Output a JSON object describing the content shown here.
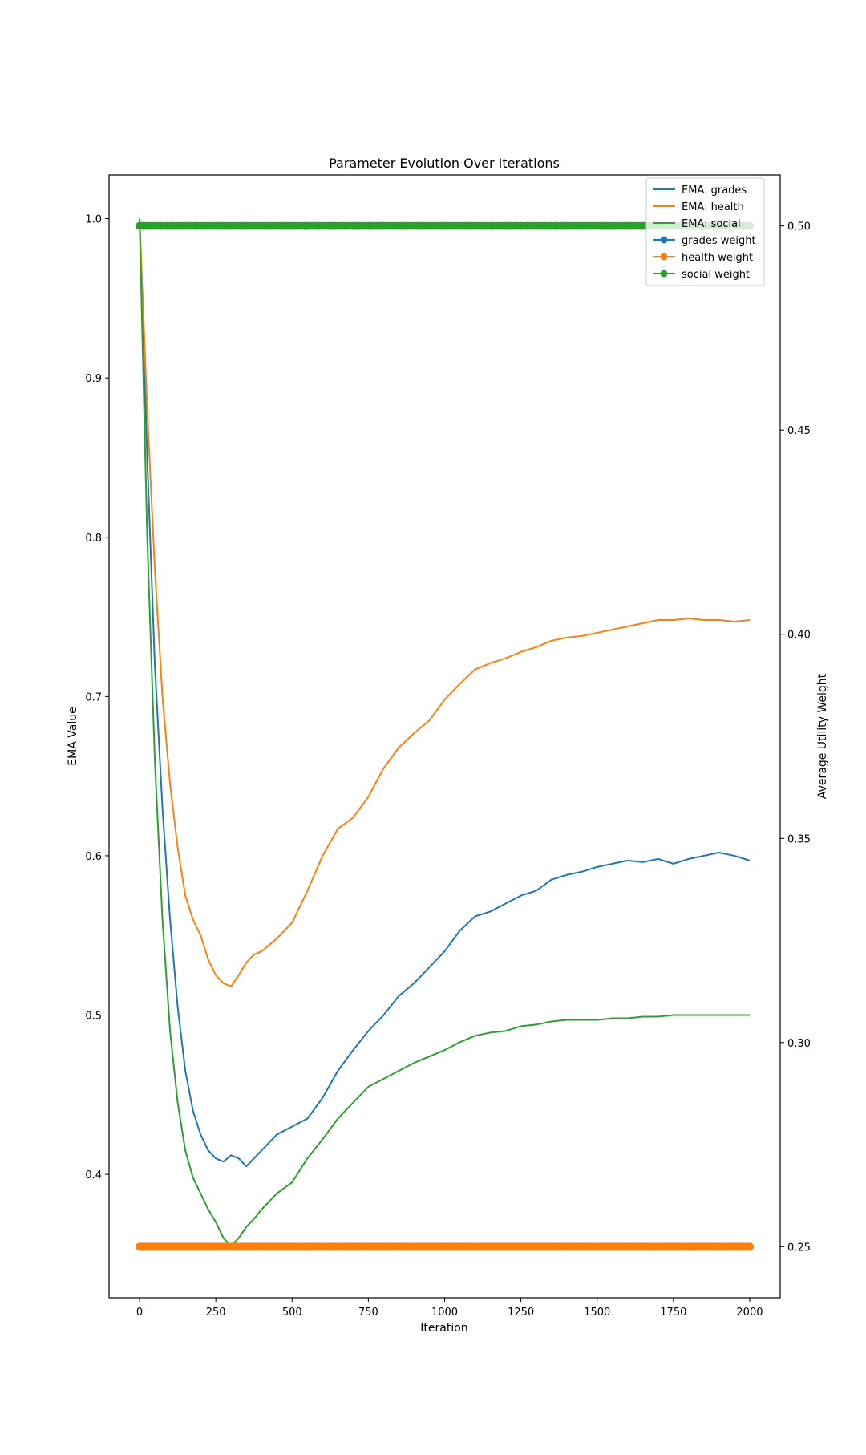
{
  "chart_data": {
    "type": "line",
    "title": "Parameter Evolution Over Iterations",
    "xlabel": "Iteration",
    "ylabel": "EMA Value",
    "y2label": "Average Utility Weight",
    "xlim": [
      -100,
      2100
    ],
    "ylim": [
      0.3225,
      1.0275
    ],
    "y2lim": [
      0.2375,
      0.5125
    ],
    "x_ticks": [
      0,
      250,
      500,
      750,
      1000,
      1250,
      1500,
      1750,
      2000
    ],
    "y_ticks": [
      0.4,
      0.5,
      0.6,
      0.7,
      0.8,
      0.9,
      1.0
    ],
    "y2_ticks": [
      0.25,
      0.3,
      0.35,
      0.4,
      0.45,
      0.5
    ],
    "grid": false,
    "legend_position": "top-right",
    "series": [
      {
        "name": "EMA: grades",
        "axis": "left",
        "style": "line",
        "color": "#1f77b4",
        "x": [
          0,
          25,
          50,
          75,
          100,
          125,
          150,
          175,
          200,
          225,
          250,
          275,
          300,
          325,
          350,
          375,
          400,
          450,
          500,
          550,
          600,
          650,
          700,
          750,
          800,
          850,
          900,
          950,
          1000,
          1050,
          1100,
          1150,
          1200,
          1250,
          1300,
          1350,
          1400,
          1450,
          1500,
          1550,
          1600,
          1650,
          1700,
          1750,
          1800,
          1850,
          1900,
          1950,
          2000
        ],
        "y": [
          1.0,
          0.85,
          0.72,
          0.63,
          0.56,
          0.505,
          0.465,
          0.44,
          0.425,
          0.415,
          0.41,
          0.408,
          0.412,
          0.41,
          0.405,
          0.41,
          0.415,
          0.425,
          0.43,
          0.435,
          0.448,
          0.465,
          0.478,
          0.49,
          0.5,
          0.512,
          0.52,
          0.53,
          0.54,
          0.553,
          0.562,
          0.565,
          0.57,
          0.575,
          0.578,
          0.585,
          0.588,
          0.59,
          0.593,
          0.595,
          0.597,
          0.596,
          0.598,
          0.595,
          0.598,
          0.6,
          0.602,
          0.6,
          0.597
        ]
      },
      {
        "name": "EMA: health",
        "axis": "left",
        "style": "line",
        "color": "#ff7f0e",
        "x": [
          0,
          25,
          50,
          75,
          100,
          125,
          150,
          175,
          200,
          225,
          250,
          275,
          300,
          325,
          350,
          375,
          400,
          450,
          500,
          550,
          600,
          650,
          700,
          750,
          800,
          850,
          900,
          950,
          1000,
          1050,
          1100,
          1150,
          1200,
          1250,
          1300,
          1350,
          1400,
          1450,
          1500,
          1550,
          1600,
          1650,
          1700,
          1750,
          1800,
          1850,
          1900,
          1950,
          2000
        ],
        "y": [
          1.0,
          0.88,
          0.78,
          0.7,
          0.645,
          0.605,
          0.575,
          0.56,
          0.55,
          0.535,
          0.525,
          0.52,
          0.518,
          0.525,
          0.533,
          0.538,
          0.54,
          0.548,
          0.558,
          0.578,
          0.6,
          0.617,
          0.624,
          0.637,
          0.655,
          0.668,
          0.677,
          0.685,
          0.698,
          0.708,
          0.717,
          0.721,
          0.724,
          0.728,
          0.731,
          0.735,
          0.737,
          0.738,
          0.74,
          0.742,
          0.744,
          0.746,
          0.748,
          0.748,
          0.749,
          0.748,
          0.748,
          0.747,
          0.748
        ]
      },
      {
        "name": "EMA: social",
        "axis": "left",
        "style": "line",
        "color": "#2ca02c",
        "x": [
          0,
          25,
          50,
          75,
          100,
          125,
          150,
          175,
          200,
          225,
          250,
          275,
          300,
          325,
          350,
          375,
          400,
          450,
          500,
          550,
          600,
          650,
          700,
          750,
          800,
          850,
          900,
          950,
          1000,
          1050,
          1100,
          1150,
          1200,
          1250,
          1300,
          1350,
          1400,
          1450,
          1500,
          1550,
          1600,
          1650,
          1700,
          1750,
          1800,
          1850,
          1900,
          1950,
          2000
        ],
        "y": [
          1.0,
          0.8,
          0.66,
          0.56,
          0.49,
          0.445,
          0.415,
          0.398,
          0.388,
          0.378,
          0.37,
          0.36,
          0.355,
          0.36,
          0.367,
          0.372,
          0.378,
          0.388,
          0.395,
          0.41,
          0.422,
          0.435,
          0.445,
          0.455,
          0.46,
          0.465,
          0.47,
          0.474,
          0.478,
          0.483,
          0.487,
          0.489,
          0.49,
          0.493,
          0.494,
          0.496,
          0.497,
          0.497,
          0.497,
          0.498,
          0.498,
          0.499,
          0.499,
          0.5,
          0.5,
          0.5,
          0.5,
          0.5,
          0.5
        ]
      },
      {
        "name": "grades weight",
        "axis": "right",
        "style": "line-marker",
        "color": "#1f77b4",
        "x": [
          0,
          2000
        ],
        "y": [
          0.25,
          0.25
        ]
      },
      {
        "name": "health weight",
        "axis": "right",
        "style": "line-marker",
        "color": "#ff7f0e",
        "x": [
          0,
          2000
        ],
        "y": [
          0.25,
          0.25
        ]
      },
      {
        "name": "social weight",
        "axis": "right",
        "style": "line-marker",
        "color": "#2ca02c",
        "x": [
          0,
          2000
        ],
        "y": [
          0.5,
          0.5
        ]
      }
    ]
  }
}
